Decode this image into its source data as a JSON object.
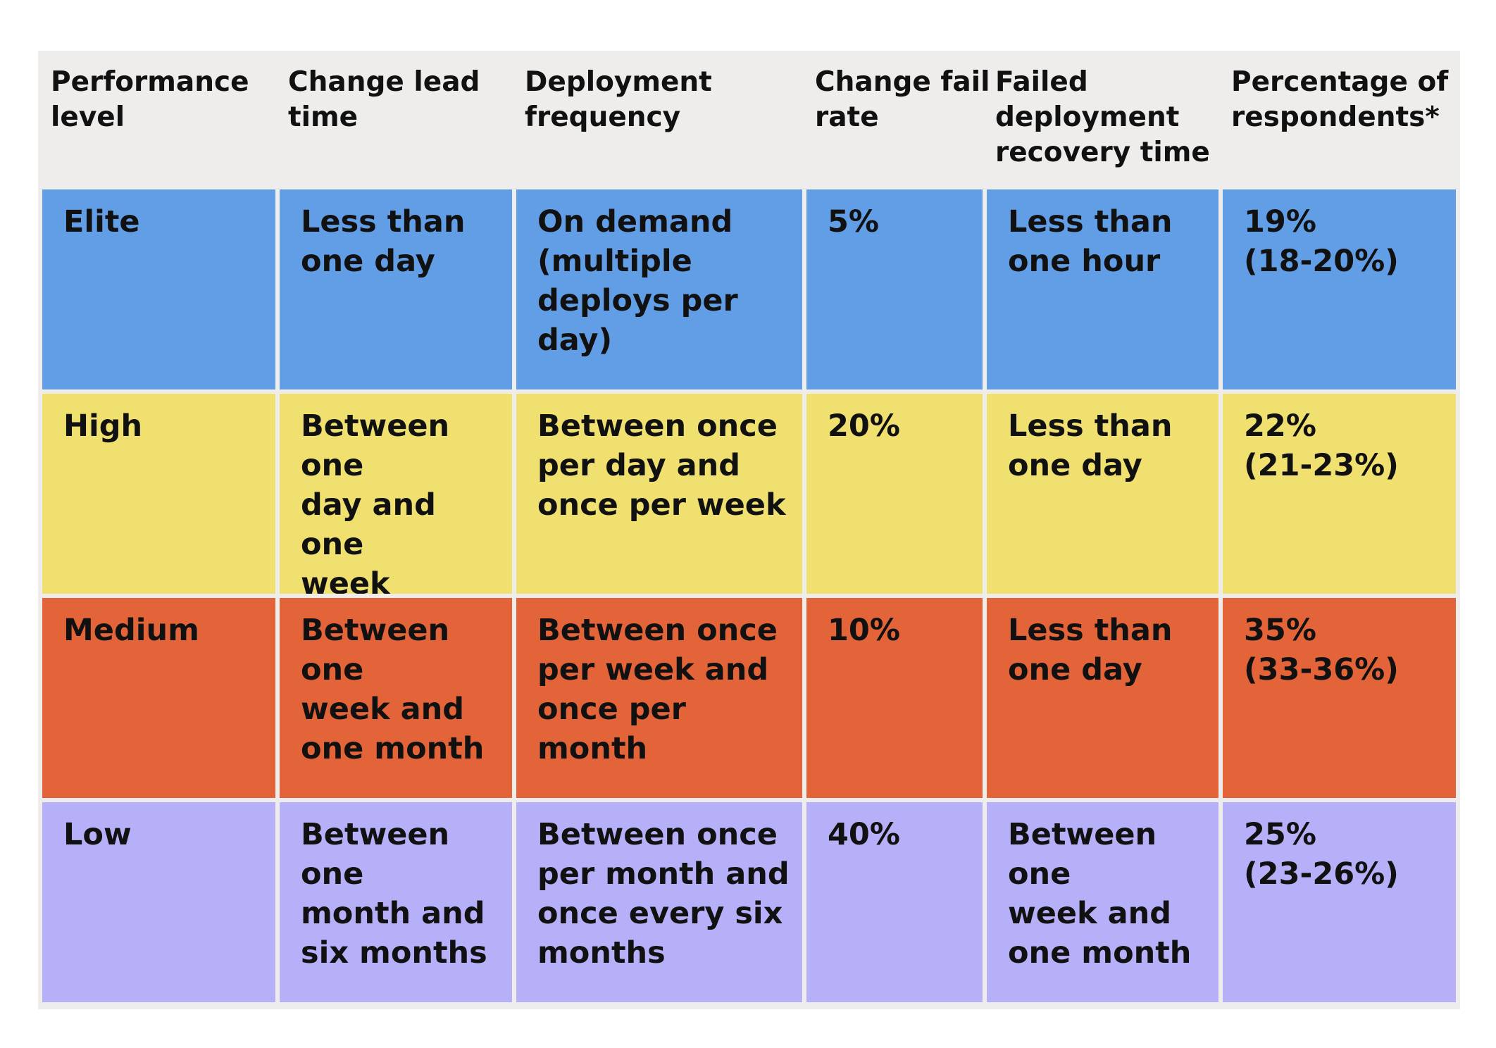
{
  "table": {
    "headers": [
      "Performance\nlevel",
      "Change lead\ntime",
      "Deployment\nfrequency",
      "Change fail\nrate",
      "Failed\ndeployment\nrecovery time",
      "Percentage of\nrespondents*"
    ],
    "rows": [
      {
        "color": "#629ee6",
        "cells": [
          "Elite",
          "Less than\none day",
          "On demand\n(multiple\ndeploys per day)",
          "5%",
          "Less than\none hour",
          "19%\n(18-20%)"
        ]
      },
      {
        "color": "#efe070",
        "cells": [
          "High",
          "Between one\nday and one\nweek",
          "Between once\nper day and\nonce per week",
          "20%",
          "Less than\none day",
          "22%\n(21-23%)"
        ]
      },
      {
        "color": "#e4643a",
        "cells": [
          "Medium",
          "Between one\nweek and\none month",
          "Between once\nper week and\nonce per month",
          "10%",
          "Less than\none day",
          "35%\n(33-36%)"
        ]
      },
      {
        "color": "#b6b0f8",
        "cells": [
          "Low",
          "Between one\nmonth and\nsix months",
          "Between once\nper month and\nonce every six\nmonths",
          "40%",
          "Between one\nweek and\none month",
          "25%\n(23-26%)"
        ]
      }
    ]
  }
}
